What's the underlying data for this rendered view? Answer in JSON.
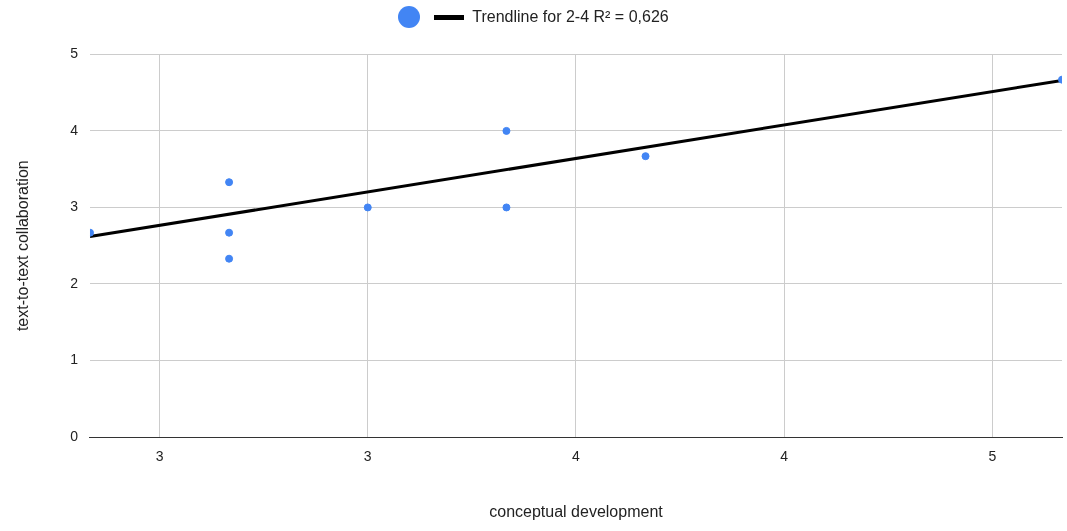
{
  "chart_data": {
    "type": "scatter",
    "xlabel": "conceptual development",
    "ylabel": "text-to-text collaboration",
    "xlim": [
      2.333,
      4.667
    ],
    "xticks": [
      {
        "value": 2.5,
        "label": "3"
      },
      {
        "value": 3,
        "label": "3"
      },
      {
        "value": 3.5,
        "label": "4"
      },
      {
        "value": 4,
        "label": "4"
      },
      {
        "value": 4.5,
        "label": "5"
      }
    ],
    "ylim": [
      0,
      5
    ],
    "yticks": [
      0,
      1,
      2,
      3,
      4,
      5
    ],
    "grid": true,
    "legend": "top",
    "marker": "circle",
    "series": [
      {
        "color": "#4285f4",
        "x": [
          2.333,
          2.667,
          2.667,
          2.667,
          3.0,
          3.333,
          3.333,
          3.667,
          4.667
        ],
        "values": [
          2.67,
          3.33,
          2.67,
          2.33,
          3.0,
          4.0,
          3.0,
          3.67,
          4.67
        ]
      },
      {
        "type": "line",
        "name": "Trendline for 2-4  R² = 0,626",
        "color": "#000000",
        "marker": "none",
        "x": [
          2.333,
          4.667
        ],
        "values": [
          2.62,
          4.66
        ]
      }
    ]
  }
}
